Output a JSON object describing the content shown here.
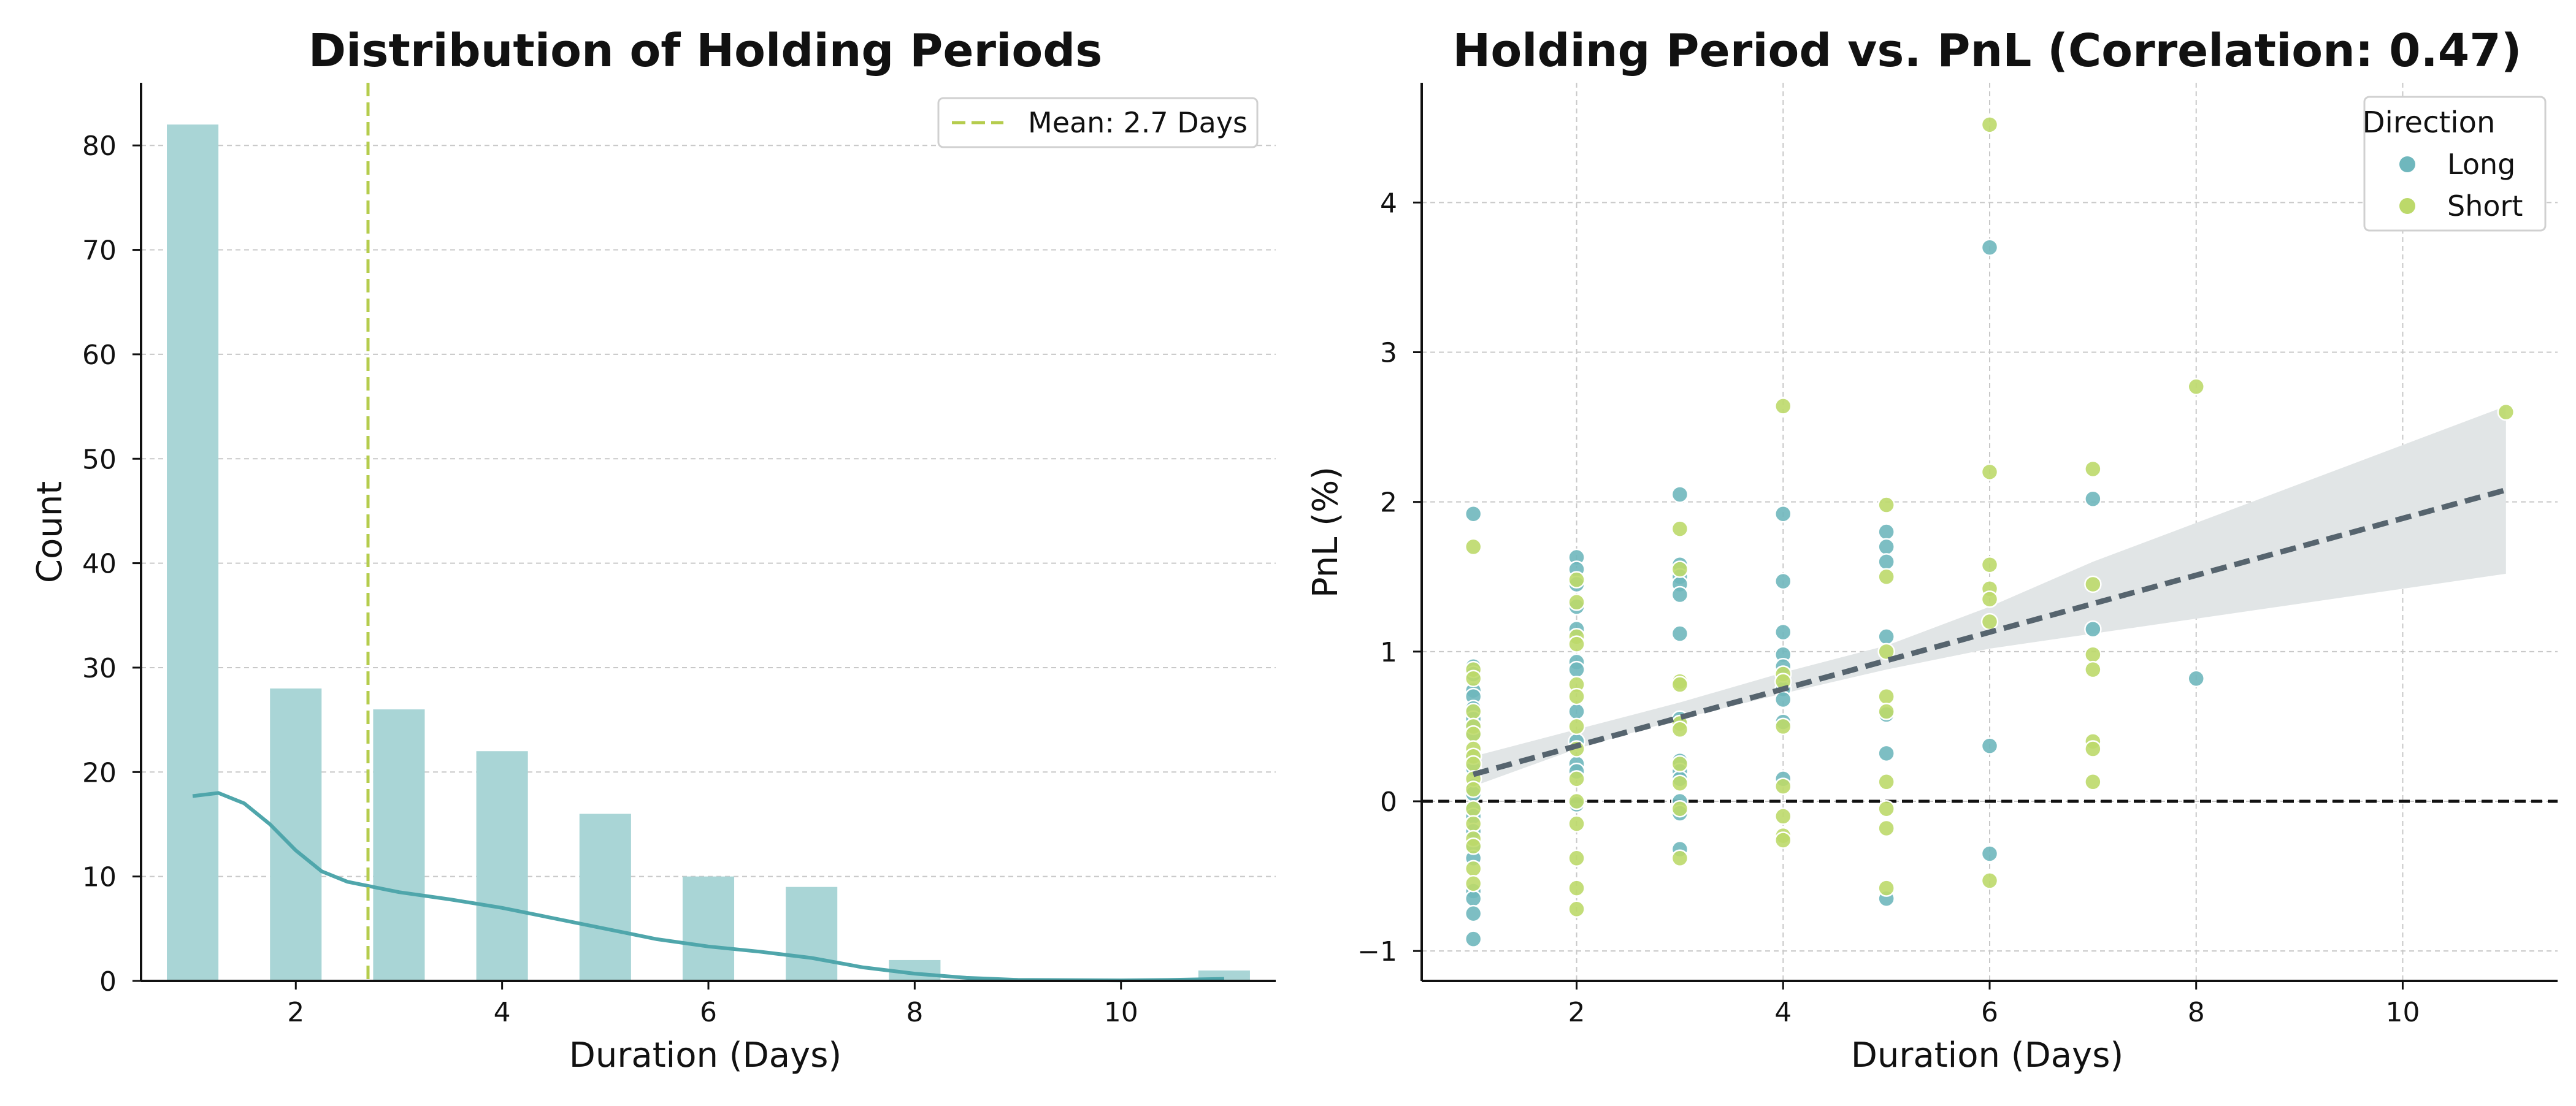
{
  "colors": {
    "bar": "#a9d5d6",
    "kde": "#4fa6ab",
    "mean_line": "#b5cc4d",
    "long": "#6fb7bd",
    "short": "#bcd96a",
    "trend": "#56646e",
    "band": "#e1e5e6",
    "zero_line": "#111111",
    "grid": "#c8c8c8"
  },
  "chart_data": [
    {
      "type": "bar",
      "title": "Distribution of Holding Periods",
      "xlabel": "Duration (Days)",
      "ylabel": "Count",
      "xlim": [
        0.5,
        11.5
      ],
      "ylim": [
        0,
        86
      ],
      "xticks": [
        2,
        4,
        6,
        8,
        10
      ],
      "yticks": [
        0,
        10,
        20,
        30,
        40,
        50,
        60,
        70,
        80
      ],
      "grid": "y",
      "bars": [
        {
          "x": 1,
          "value": 82
        },
        {
          "x": 2,
          "value": 28
        },
        {
          "x": 3,
          "value": 26
        },
        {
          "x": 4,
          "value": 22
        },
        {
          "x": 5,
          "value": 16
        },
        {
          "x": 6,
          "value": 10
        },
        {
          "x": 7,
          "value": 9
        },
        {
          "x": 8,
          "value": 2
        },
        {
          "x": 11,
          "value": 1
        }
      ],
      "kde": [
        [
          1,
          17.7
        ],
        [
          1.25,
          18
        ],
        [
          1.5,
          17
        ],
        [
          1.75,
          15
        ],
        [
          2,
          12.5
        ],
        [
          2.25,
          10.5
        ],
        [
          2.5,
          9.5
        ],
        [
          2.75,
          9
        ],
        [
          3,
          8.5
        ],
        [
          3.5,
          7.8
        ],
        [
          4,
          7
        ],
        [
          4.5,
          6
        ],
        [
          5,
          5
        ],
        [
          5.5,
          4
        ],
        [
          6,
          3.3
        ],
        [
          6.5,
          2.8
        ],
        [
          7,
          2.2
        ],
        [
          7.5,
          1.3
        ],
        [
          8,
          0.7
        ],
        [
          8.5,
          0.3
        ],
        [
          9,
          0.1
        ],
        [
          10,
          0.05
        ],
        [
          10.5,
          0.1
        ],
        [
          11,
          0.2
        ]
      ],
      "mean": 2.7,
      "legend": {
        "mean_label": "Mean: 2.7 Days",
        "position": "upper right"
      }
    },
    {
      "type": "scatter",
      "title": "Holding Period vs. PnL (Correlation: 0.47)",
      "xlabel": "Duration (Days)",
      "ylabel": "PnL (%)",
      "xlim": [
        0.5,
        11.5
      ],
      "ylim": [
        -1.2,
        4.8
      ],
      "xticks": [
        2,
        4,
        6,
        8,
        10
      ],
      "yticks": [
        -1,
        0,
        1,
        2,
        3,
        4
      ],
      "ytick_labels": [
        "−1",
        "0",
        "1",
        "2",
        "3",
        "4"
      ],
      "grid": "both",
      "reference_line_y": 0,
      "legend": {
        "title": "Direction",
        "position": "upper right",
        "entries": [
          "Long",
          "Short"
        ]
      },
      "series": [
        {
          "name": "Long",
          "points": [
            [
              1,
              1.92
            ],
            [
              1,
              0.9
            ],
            [
              1,
              0.85
            ],
            [
              1,
              0.74
            ],
            [
              1,
              0.7
            ],
            [
              1,
              0.62
            ],
            [
              1,
              0.55
            ],
            [
              1,
              0.5
            ],
            [
              1,
              0.44
            ],
            [
              1,
              0.3
            ],
            [
              1,
              0.22
            ],
            [
              1,
              0.1
            ],
            [
              1,
              0.05
            ],
            [
              1,
              -0.05
            ],
            [
              1,
              -0.1
            ],
            [
              1,
              -0.2
            ],
            [
              1,
              -0.3
            ],
            [
              1,
              -0.38
            ],
            [
              1,
              -0.6
            ],
            [
              1,
              -0.65
            ],
            [
              1,
              -0.75
            ],
            [
              1,
              -0.92
            ],
            [
              2,
              1.63
            ],
            [
              2,
              1.55
            ],
            [
              2,
              1.45
            ],
            [
              2,
              1.3
            ],
            [
              2,
              1.15
            ],
            [
              2,
              0.93
            ],
            [
              2,
              0.88
            ],
            [
              2,
              0.6
            ],
            [
              2,
              0.4
            ],
            [
              2,
              0.25
            ],
            [
              2,
              0.2
            ],
            [
              2,
              -0.02
            ],
            [
              3,
              2.05
            ],
            [
              3,
              1.58
            ],
            [
              3,
              1.5
            ],
            [
              3,
              1.45
            ],
            [
              3,
              1.38
            ],
            [
              3,
              1.12
            ],
            [
              3,
              0.55
            ],
            [
              3,
              0.27
            ],
            [
              3,
              0.2
            ],
            [
              3,
              0.15
            ],
            [
              3,
              0.0
            ],
            [
              3,
              -0.08
            ],
            [
              3,
              -0.32
            ],
            [
              4,
              1.92
            ],
            [
              4,
              1.47
            ],
            [
              4,
              1.13
            ],
            [
              4,
              0.98
            ],
            [
              4,
              0.9
            ],
            [
              4,
              0.75
            ],
            [
              4,
              0.68
            ],
            [
              4,
              0.53
            ],
            [
              4,
              0.15
            ],
            [
              5,
              1.8
            ],
            [
              5,
              1.7
            ],
            [
              5,
              1.6
            ],
            [
              5,
              1.1
            ],
            [
              5,
              0.58
            ],
            [
              5,
              0.32
            ],
            [
              5,
              -0.65
            ],
            [
              6,
              3.7
            ],
            [
              6,
              0.37
            ],
            [
              6,
              -0.35
            ],
            [
              7,
              2.02
            ],
            [
              7,
              1.15
            ],
            [
              8,
              0.82
            ]
          ]
        },
        {
          "name": "Short",
          "points": [
            [
              1,
              1.7
            ],
            [
              1,
              0.88
            ],
            [
              1,
              0.82
            ],
            [
              1,
              0.6
            ],
            [
              1,
              0.5
            ],
            [
              1,
              0.45
            ],
            [
              1,
              0.35
            ],
            [
              1,
              0.3
            ],
            [
              1,
              0.25
            ],
            [
              1,
              0.15
            ],
            [
              1,
              0.08
            ],
            [
              1,
              -0.05
            ],
            [
              1,
              -0.15
            ],
            [
              1,
              -0.25
            ],
            [
              1,
              -0.3
            ],
            [
              1,
              -0.45
            ],
            [
              1,
              -0.55
            ],
            [
              2,
              1.48
            ],
            [
              2,
              1.33
            ],
            [
              2,
              1.1
            ],
            [
              2,
              1.05
            ],
            [
              2,
              0.78
            ],
            [
              2,
              0.7
            ],
            [
              2,
              0.5
            ],
            [
              2,
              0.35
            ],
            [
              2,
              0.15
            ],
            [
              2,
              0.0
            ],
            [
              2,
              -0.15
            ],
            [
              2,
              -0.38
            ],
            [
              2,
              -0.58
            ],
            [
              2,
              -0.72
            ],
            [
              3,
              1.82
            ],
            [
              3,
              1.55
            ],
            [
              3,
              0.8
            ],
            [
              3,
              0.78
            ],
            [
              3,
              0.52
            ],
            [
              3,
              0.48
            ],
            [
              3,
              0.25
            ],
            [
              3,
              0.12
            ],
            [
              3,
              -0.05
            ],
            [
              3,
              -0.38
            ],
            [
              4,
              2.64
            ],
            [
              4,
              0.85
            ],
            [
              4,
              0.8
            ],
            [
              4,
              0.5
            ],
            [
              4,
              0.1
            ],
            [
              4,
              -0.1
            ],
            [
              4,
              -0.23
            ],
            [
              4,
              -0.26
            ],
            [
              5,
              1.98
            ],
            [
              5,
              1.5
            ],
            [
              5,
              1.0
            ],
            [
              5,
              0.7
            ],
            [
              5,
              0.6
            ],
            [
              5,
              0.13
            ],
            [
              5,
              -0.05
            ],
            [
              5,
              -0.18
            ],
            [
              5,
              -0.58
            ],
            [
              6,
              4.52
            ],
            [
              6,
              2.2
            ],
            [
              6,
              1.58
            ],
            [
              6,
              1.42
            ],
            [
              6,
              1.35
            ],
            [
              6,
              1.2
            ],
            [
              6,
              -0.53
            ],
            [
              7,
              2.22
            ],
            [
              7,
              1.45
            ],
            [
              7,
              0.98
            ],
            [
              7,
              0.88
            ],
            [
              7,
              0.4
            ],
            [
              7,
              0.35
            ],
            [
              7,
              0.13
            ],
            [
              8,
              2.77
            ],
            [
              11,
              2.6
            ]
          ]
        }
      ],
      "trend_line": {
        "x": [
          1,
          11
        ],
        "y": [
          0.18,
          2.08
        ]
      },
      "ci_band": {
        "x": [
          1,
          2,
          3,
          4,
          5,
          6,
          7,
          8,
          9,
          10,
          11
        ],
        "lower": [
          0.1,
          0.35,
          0.55,
          0.72,
          0.88,
          1.02,
          1.12,
          1.22,
          1.32,
          1.42,
          1.52
        ],
        "upper": [
          0.3,
          0.48,
          0.66,
          0.86,
          1.04,
          1.3,
          1.6,
          1.86,
          2.12,
          2.38,
          2.64
        ]
      }
    }
  ]
}
